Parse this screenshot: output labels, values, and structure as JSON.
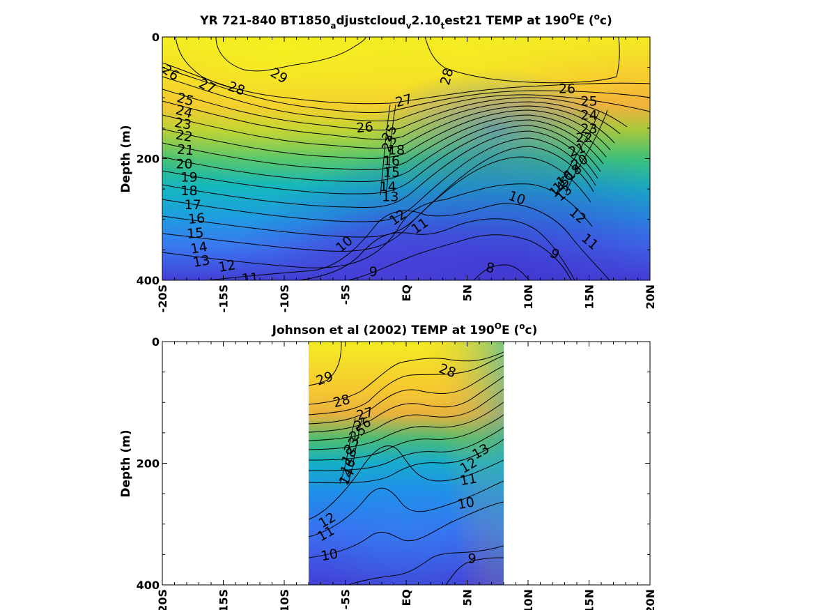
{
  "colors": {
    "warm": "#f3ec22",
    "orange": "#f6b23e",
    "green": "#2fbf8a",
    "cyan": "#13b5c4",
    "blue": "#3a78f0",
    "deep": "#4440d6"
  },
  "chart_data": [
    {
      "type": "heatmap",
      "title": "YR 721-840 BT1850_adjustcloud_v2.10_test21 TEMP at 190°E (°c)",
      "title_parts": {
        "p1": "YR 721-840 BT1850",
        "s1": "a",
        "p2": "djustcloud",
        "s2": "v",
        "p3": "2.10",
        "s3": "t",
        "p4": "est21 TEMP at 190",
        "s4": "O",
        "p5": "E (",
        "s5": "o",
        "p6": "c)"
      },
      "ylabel": "Depth (m)",
      "ylim": [
        0,
        400
      ],
      "xlim": [
        -20,
        20
      ],
      "data_x": [
        -20,
        20
      ],
      "yticks": [
        {
          "v": 0,
          "label": "0"
        },
        {
          "v": 200,
          "label": "200"
        },
        {
          "v": 400,
          "label": "400"
        }
      ],
      "xticks": [
        {
          "v": -20,
          "label": "-20S"
        },
        {
          "v": -15,
          "label": "-15S"
        },
        {
          "v": -10,
          "label": "-10S"
        },
        {
          "v": -5,
          "label": "-5S"
        },
        {
          "v": 0,
          "label": "EQ"
        },
        {
          "v": 5,
          "label": "5N"
        },
        {
          "v": 10,
          "label": "10N"
        },
        {
          "v": 15,
          "label": "15N"
        },
        {
          "v": 20,
          "label": "20N"
        }
      ],
      "contour_labels": [
        {
          "x": -19.3,
          "y": 58,
          "t": "26",
          "r": 35
        },
        {
          "x": -16.3,
          "y": 80,
          "t": "27",
          "r": 25
        },
        {
          "x": -13.9,
          "y": 84,
          "t": "28",
          "r": 20
        },
        {
          "x": -10.4,
          "y": 63,
          "t": "29",
          "r": 30
        },
        {
          "x": 3.3,
          "y": 65,
          "t": "28",
          "r": -75
        },
        {
          "x": 13.2,
          "y": 84,
          "t": "26",
          "r": 0
        },
        {
          "x": -0.2,
          "y": 104,
          "t": "27",
          "r": -15
        },
        {
          "x": -3.4,
          "y": 148,
          "t": "26",
          "r": -5
        },
        {
          "x": -18.1,
          "y": 102,
          "t": "25",
          "r": 15
        },
        {
          "x": -18.2,
          "y": 122,
          "t": "24",
          "r": 15
        },
        {
          "x": -18.3,
          "y": 142,
          "t": "23",
          "r": 10
        },
        {
          "x": -18.2,
          "y": 162,
          "t": "22",
          "r": 10
        },
        {
          "x": -18.1,
          "y": 185,
          "t": "21",
          "r": 5
        },
        {
          "x": -18.2,
          "y": 208,
          "t": "20",
          "r": 0
        },
        {
          "x": -17.8,
          "y": 230,
          "t": "19",
          "r": 0
        },
        {
          "x": -17.8,
          "y": 252,
          "t": "18",
          "r": 0
        },
        {
          "x": -17.5,
          "y": 275,
          "t": "17",
          "r": 0
        },
        {
          "x": -17.2,
          "y": 298,
          "t": "16",
          "r": -5
        },
        {
          "x": -17.3,
          "y": 322,
          "t": "15",
          "r": -5
        },
        {
          "x": -17.0,
          "y": 346,
          "t": "14",
          "r": -10
        },
        {
          "x": -16.8,
          "y": 368,
          "t": "13",
          "r": -10
        },
        {
          "x": -14.7,
          "y": 376,
          "t": "12",
          "r": -10
        },
        {
          "x": -12.8,
          "y": 396,
          "t": "11",
          "r": -5
        },
        {
          "x": -5.1,
          "y": 340,
          "t": "10",
          "r": -40
        },
        {
          "x": -2.7,
          "y": 385,
          "t": "9",
          "r": 0
        },
        {
          "x": -0.7,
          "y": 296,
          "t": "12",
          "r": -35
        },
        {
          "x": 1.1,
          "y": 310,
          "t": "11",
          "r": -35
        },
        {
          "x": 9.1,
          "y": 264,
          "t": "10",
          "r": 20
        },
        {
          "x": 12.2,
          "y": 356,
          "t": "9",
          "r": 30
        },
        {
          "x": 6.9,
          "y": 379,
          "t": "8",
          "r": 10
        },
        {
          "x": 14.1,
          "y": 293,
          "t": "12",
          "r": 40
        },
        {
          "x": 15.1,
          "y": 336,
          "t": "11",
          "r": 40
        },
        {
          "x": -1.2,
          "y": 222,
          "t": "15",
          "r": 0
        },
        {
          "x": -1.5,
          "y": 245,
          "t": "14",
          "r": 0
        },
        {
          "x": -1.3,
          "y": 262,
          "t": "13",
          "r": 0
        },
        {
          "x": -1.2,
          "y": 203,
          "t": "16",
          "r": 0
        },
        {
          "x": -0.8,
          "y": 185,
          "t": "18",
          "r": 0
        },
        {
          "x": -1.4,
          "y": 158,
          "t": "25",
          "r": -60
        },
        {
          "x": -1.4,
          "y": 175,
          "t": "23",
          "r": -60
        },
        {
          "x": 15.0,
          "y": 105,
          "t": "25",
          "r": 0
        },
        {
          "x": 15.0,
          "y": 128,
          "t": "24",
          "r": 0
        },
        {
          "x": 15.0,
          "y": 150,
          "t": "23",
          "r": 0
        },
        {
          "x": 14.6,
          "y": 165,
          "t": "22",
          "r": 0
        },
        {
          "x": 14.0,
          "y": 185,
          "t": "21",
          "r": -20
        },
        {
          "x": 14.2,
          "y": 205,
          "t": "20",
          "r": -30
        },
        {
          "x": 13.7,
          "y": 222,
          "t": "18",
          "r": -40
        },
        {
          "x": 13.0,
          "y": 232,
          "t": "16",
          "r": -40
        },
        {
          "x": 12.7,
          "y": 242,
          "t": "15",
          "r": -40
        },
        {
          "x": 12.4,
          "y": 250,
          "t": "14",
          "r": -40
        },
        {
          "x": 12.9,
          "y": 256,
          "t": "13",
          "r": -40
        }
      ]
    },
    {
      "type": "heatmap",
      "title": "Johnson et al (2002) TEMP at 190°E (°c)",
      "title_parts": {
        "p1": "Johnson et al (2002) TEMP at 190",
        "s1": "O",
        "p2": "E (",
        "s2": "o",
        "p3": "c)"
      },
      "ylabel": "Depth (m)",
      "ylim": [
        0,
        400
      ],
      "xlim": [
        -20,
        20
      ],
      "data_x": [
        -8,
        8
      ],
      "yticks": [
        {
          "v": 0,
          "label": "0"
        },
        {
          "v": 200,
          "label": "200"
        },
        {
          "v": 400,
          "label": "400"
        }
      ],
      "xticks": [
        {
          "v": -20,
          "label": "-20S"
        },
        {
          "v": -15,
          "label": "-15S"
        },
        {
          "v": -10,
          "label": "-10S"
        },
        {
          "v": -5,
          "label": "-5S"
        },
        {
          "v": 0,
          "label": "EQ"
        },
        {
          "v": 5,
          "label": "5N"
        },
        {
          "v": 10,
          "label": "10N"
        },
        {
          "v": 15,
          "label": "15N"
        },
        {
          "v": 20,
          "label": "20N"
        }
      ],
      "contour_labels": [
        {
          "x": -6.7,
          "y": 60,
          "t": "29",
          "r": -20
        },
        {
          "x": -5.3,
          "y": 97,
          "t": "28",
          "r": -15
        },
        {
          "x": 3.4,
          "y": 47,
          "t": "28",
          "r": 20
        },
        {
          "x": -3.4,
          "y": 118,
          "t": "27",
          "r": -15
        },
        {
          "x": -3.6,
          "y": 135,
          "t": "26",
          "r": -20
        },
        {
          "x": -4.0,
          "y": 150,
          "t": "25",
          "r": -40
        },
        {
          "x": -4.5,
          "y": 170,
          "t": "23",
          "r": -60
        },
        {
          "x": -4.7,
          "y": 188,
          "t": "18",
          "r": -60
        },
        {
          "x": -4.8,
          "y": 205,
          "t": "16",
          "r": -60
        },
        {
          "x": -4.9,
          "y": 222,
          "t": "14",
          "r": -60
        },
        {
          "x": 5.1,
          "y": 203,
          "t": "12",
          "r": -30
        },
        {
          "x": 6.1,
          "y": 180,
          "t": "13",
          "r": -30
        },
        {
          "x": 5.1,
          "y": 226,
          "t": "11",
          "r": -10
        },
        {
          "x": 4.9,
          "y": 265,
          "t": "10",
          "r": -10
        },
        {
          "x": -6.5,
          "y": 293,
          "t": "12",
          "r": -30
        },
        {
          "x": -6.6,
          "y": 315,
          "t": "11",
          "r": -30
        },
        {
          "x": -6.3,
          "y": 350,
          "t": "10",
          "r": -10
        },
        {
          "x": 5.4,
          "y": 356,
          "t": "9",
          "r": 0
        }
      ]
    }
  ]
}
